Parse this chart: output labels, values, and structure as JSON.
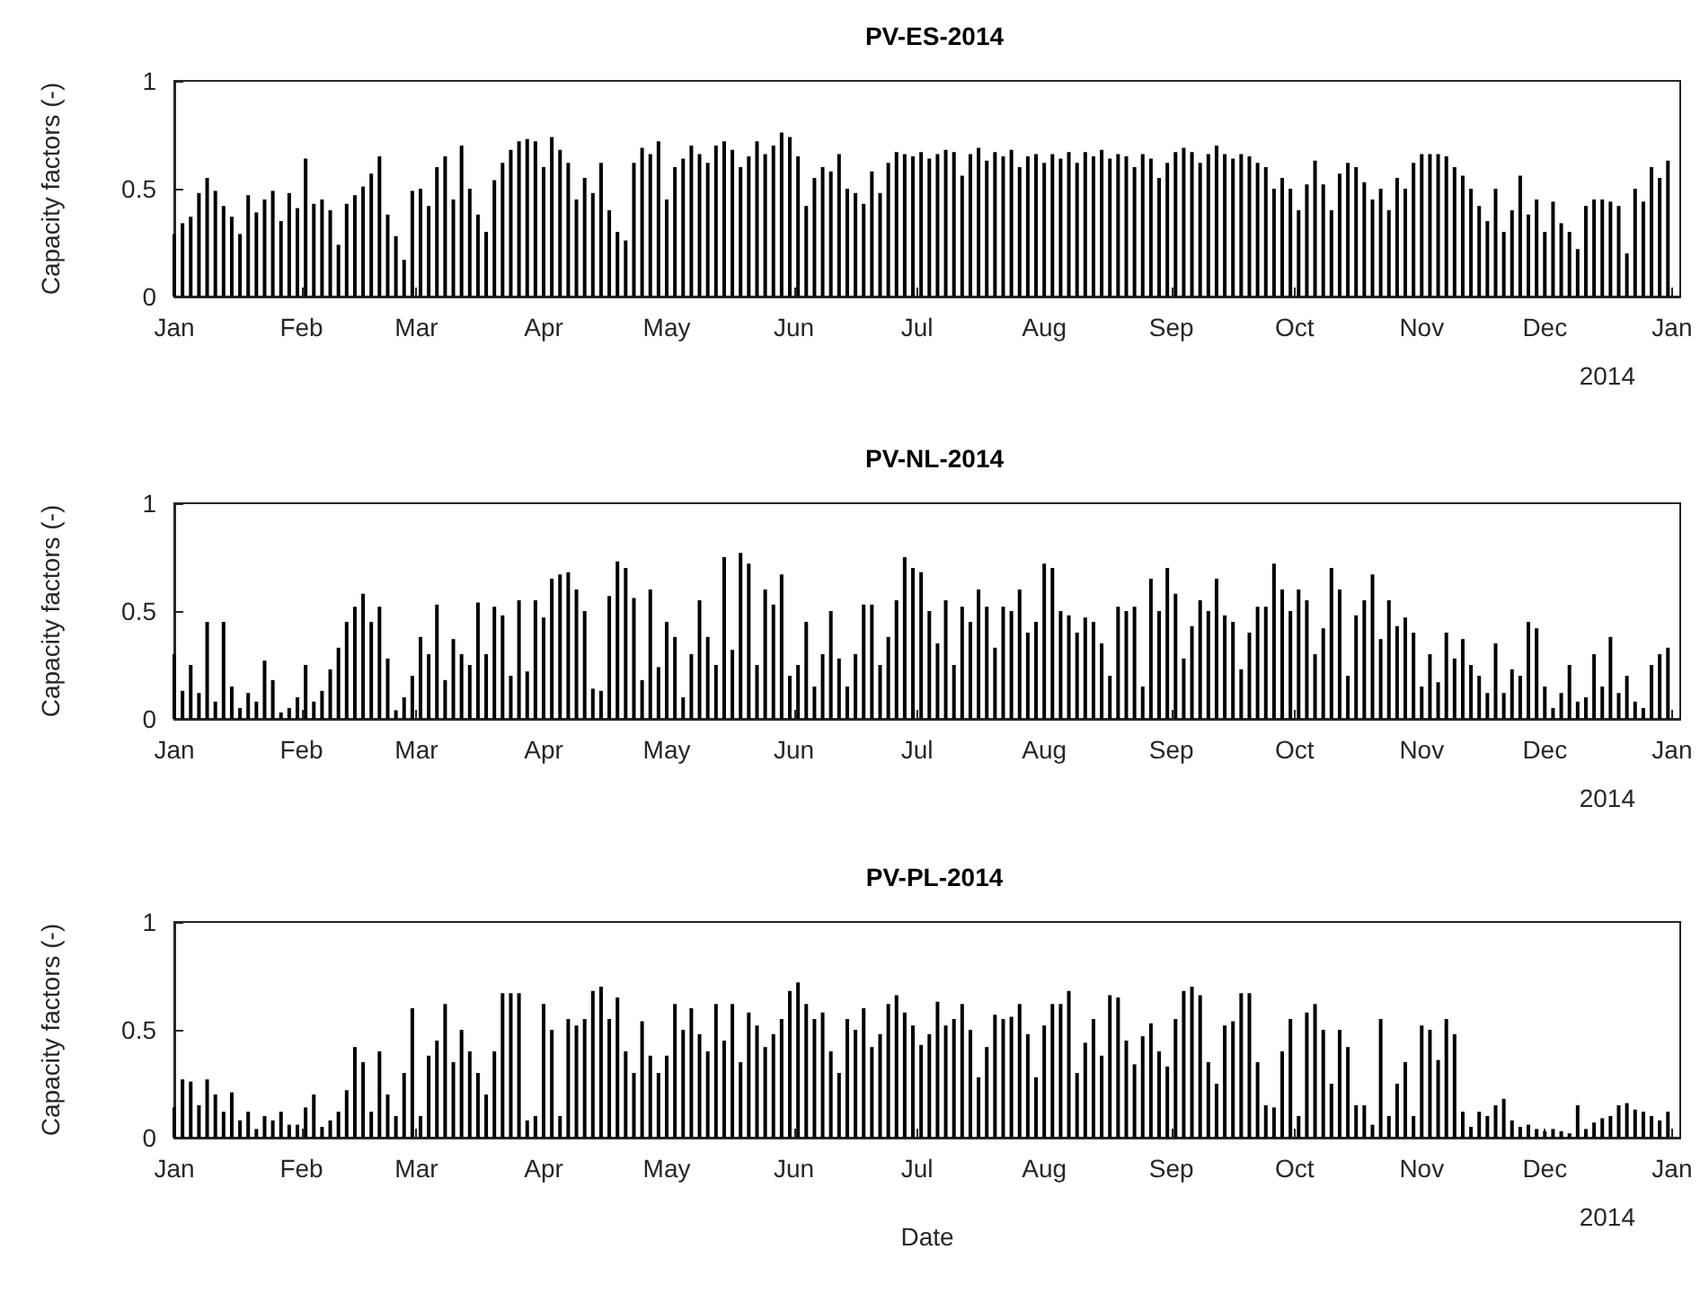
{
  "chart_data": [
    {
      "type": "bar",
      "title": "PV-ES-2014",
      "ylabel": "Capacity factors (-)",
      "annotations": [
        "2014"
      ],
      "color": "#000000",
      "xlim": [
        "2014-01-01",
        "2015-01-03"
      ],
      "ylim": [
        0,
        1
      ],
      "yticks": [
        0,
        0.5,
        1
      ],
      "xticks": [
        {
          "value": "2014-01-01",
          "label": "Jan"
        },
        {
          "value": "2014-02-01",
          "label": "Feb"
        },
        {
          "value": "2014-03-01",
          "label": "Mar"
        },
        {
          "value": "2014-04-01",
          "label": "Apr"
        },
        {
          "value": "2014-05-01",
          "label": "May"
        },
        {
          "value": "2014-06-01",
          "label": "Jun"
        },
        {
          "value": "2014-07-01",
          "label": "Jul"
        },
        {
          "value": "2014-08-01",
          "label": "Aug"
        },
        {
          "value": "2014-09-01",
          "label": "Sep"
        },
        {
          "value": "2014-10-01",
          "label": "Oct"
        },
        {
          "value": "2014-11-01",
          "label": "Nov"
        },
        {
          "value": "2014-12-01",
          "label": "Dec"
        },
        {
          "value": "2015-01-01",
          "label": "Jan"
        }
      ],
      "x": [
        "2014-01-01",
        "2014-01-03",
        "2014-01-05",
        "2014-01-07",
        "2014-01-09",
        "2014-01-11",
        "2014-01-13",
        "2014-01-15",
        "2014-01-17",
        "2014-01-19",
        "2014-01-21",
        "2014-01-23",
        "2014-01-25",
        "2014-01-27",
        "2014-01-29",
        "2014-01-31",
        "2014-02-02",
        "2014-02-04",
        "2014-02-06",
        "2014-02-08",
        "2014-02-10",
        "2014-02-12",
        "2014-02-14",
        "2014-02-16",
        "2014-02-18",
        "2014-02-20",
        "2014-02-22",
        "2014-02-24",
        "2014-02-26",
        "2014-02-28",
        "2014-03-02",
        "2014-03-04",
        "2014-03-06",
        "2014-03-08",
        "2014-03-10",
        "2014-03-12",
        "2014-03-14",
        "2014-03-16",
        "2014-03-18",
        "2014-03-20",
        "2014-03-22",
        "2014-03-24",
        "2014-03-26",
        "2014-03-28",
        "2014-03-30",
        "2014-04-01",
        "2014-04-03",
        "2014-04-05",
        "2014-04-07",
        "2014-04-09",
        "2014-04-11",
        "2014-04-13",
        "2014-04-15",
        "2014-04-17",
        "2014-04-19",
        "2014-04-21",
        "2014-04-23",
        "2014-04-25",
        "2014-04-27",
        "2014-04-29",
        "2014-05-01",
        "2014-05-03",
        "2014-05-05",
        "2014-05-07",
        "2014-05-09",
        "2014-05-11",
        "2014-05-13",
        "2014-05-15",
        "2014-05-17",
        "2014-05-19",
        "2014-05-21",
        "2014-05-23",
        "2014-05-25",
        "2014-05-27",
        "2014-05-29",
        "2014-05-31",
        "2014-06-02",
        "2014-06-04",
        "2014-06-06",
        "2014-06-08",
        "2014-06-10",
        "2014-06-12",
        "2014-06-14",
        "2014-06-16",
        "2014-06-18",
        "2014-06-20",
        "2014-06-22",
        "2014-06-24",
        "2014-06-26",
        "2014-06-28",
        "2014-06-30",
        "2014-07-02",
        "2014-07-04",
        "2014-07-06",
        "2014-07-08",
        "2014-07-10",
        "2014-07-12",
        "2014-07-14",
        "2014-07-16",
        "2014-07-18",
        "2014-07-20",
        "2014-07-22",
        "2014-07-24",
        "2014-07-26",
        "2014-07-28",
        "2014-07-30",
        "2014-08-01",
        "2014-08-03",
        "2014-08-05",
        "2014-08-07",
        "2014-08-09",
        "2014-08-11",
        "2014-08-13",
        "2014-08-15",
        "2014-08-17",
        "2014-08-19",
        "2014-08-21",
        "2014-08-23",
        "2014-08-25",
        "2014-08-27",
        "2014-08-29",
        "2014-08-31",
        "2014-09-02",
        "2014-09-04",
        "2014-09-06",
        "2014-09-08",
        "2014-09-10",
        "2014-09-12",
        "2014-09-14",
        "2014-09-16",
        "2014-09-18",
        "2014-09-20",
        "2014-09-22",
        "2014-09-24",
        "2014-09-26",
        "2014-09-28",
        "2014-09-30",
        "2014-10-02",
        "2014-10-04",
        "2014-10-06",
        "2014-10-08",
        "2014-10-10",
        "2014-10-12",
        "2014-10-14",
        "2014-10-16",
        "2014-10-18",
        "2014-10-20",
        "2014-10-22",
        "2014-10-24",
        "2014-10-26",
        "2014-10-28",
        "2014-10-30",
        "2014-11-01",
        "2014-11-03",
        "2014-11-05",
        "2014-11-07",
        "2014-11-09",
        "2014-11-11",
        "2014-11-13",
        "2014-11-15",
        "2014-11-17",
        "2014-11-19",
        "2014-11-21",
        "2014-11-23",
        "2014-11-25",
        "2014-11-27",
        "2014-11-29",
        "2014-12-01",
        "2014-12-03",
        "2014-12-05",
        "2014-12-07",
        "2014-12-09",
        "2014-12-11",
        "2014-12-13",
        "2014-12-15",
        "2014-12-17",
        "2014-12-19",
        "2014-12-21",
        "2014-12-23",
        "2014-12-25",
        "2014-12-27",
        "2014-12-29",
        "2014-12-31"
      ],
      "values": [
        0.29,
        0.34,
        0.37,
        0.48,
        0.55,
        0.49,
        0.42,
        0.37,
        0.29,
        0.47,
        0.39,
        0.45,
        0.49,
        0.35,
        0.48,
        0.41,
        0.64,
        0.43,
        0.45,
        0.4,
        0.24,
        0.43,
        0.47,
        0.51,
        0.57,
        0.65,
        0.38,
        0.28,
        0.17,
        0.49,
        0.5,
        0.42,
        0.6,
        0.65,
        0.45,
        0.7,
        0.5,
        0.38,
        0.3,
        0.54,
        0.62,
        0.68,
        0.72,
        0.73,
        0.72,
        0.6,
        0.74,
        0.68,
        0.62,
        0.45,
        0.55,
        0.48,
        0.62,
        0.4,
        0.3,
        0.26,
        0.62,
        0.69,
        0.66,
        0.72,
        0.45,
        0.6,
        0.64,
        0.7,
        0.66,
        0.62,
        0.7,
        0.72,
        0.68,
        0.6,
        0.65,
        0.72,
        0.66,
        0.7,
        0.76,
        0.74,
        0.65,
        0.42,
        0.55,
        0.6,
        0.58,
        0.66,
        0.5,
        0.48,
        0.43,
        0.58,
        0.48,
        0.62,
        0.67,
        0.66,
        0.65,
        0.67,
        0.64,
        0.66,
        0.68,
        0.67,
        0.56,
        0.66,
        0.69,
        0.63,
        0.67,
        0.65,
        0.68,
        0.6,
        0.65,
        0.66,
        0.62,
        0.66,
        0.64,
        0.67,
        0.62,
        0.67,
        0.65,
        0.68,
        0.64,
        0.66,
        0.65,
        0.6,
        0.66,
        0.64,
        0.55,
        0.62,
        0.67,
        0.69,
        0.67,
        0.62,
        0.66,
        0.7,
        0.66,
        0.64,
        0.66,
        0.65,
        0.62,
        0.6,
        0.5,
        0.55,
        0.5,
        0.4,
        0.52,
        0.63,
        0.52,
        0.4,
        0.57,
        0.62,
        0.6,
        0.53,
        0.45,
        0.5,
        0.4,
        0.55,
        0.5,
        0.62,
        0.66,
        0.66,
        0.66,
        0.65,
        0.6,
        0.56,
        0.5,
        0.42,
        0.35,
        0.5,
        0.3,
        0.4,
        0.56,
        0.38,
        0.45,
        0.3,
        0.44,
        0.34,
        0.3,
        0.22,
        0.42,
        0.45,
        0.45,
        0.44,
        0.42,
        0.2,
        0.5,
        0.44,
        0.6,
        0.55,
        0.63
      ]
    },
    {
      "type": "bar",
      "title": "PV-NL-2014",
      "ylabel": "Capacity factors (-)",
      "annotations": [
        "2014"
      ],
      "color": "#000000",
      "xlim": [
        "2014-01-01",
        "2015-01-03"
      ],
      "ylim": [
        0,
        1
      ],
      "yticks": [
        0,
        0.5,
        1
      ],
      "xticks": [
        {
          "value": "2014-01-01",
          "label": "Jan"
        },
        {
          "value": "2014-02-01",
          "label": "Feb"
        },
        {
          "value": "2014-03-01",
          "label": "Mar"
        },
        {
          "value": "2014-04-01",
          "label": "Apr"
        },
        {
          "value": "2014-05-01",
          "label": "May"
        },
        {
          "value": "2014-06-01",
          "label": "Jun"
        },
        {
          "value": "2014-07-01",
          "label": "Jul"
        },
        {
          "value": "2014-08-01",
          "label": "Aug"
        },
        {
          "value": "2014-09-01",
          "label": "Sep"
        },
        {
          "value": "2014-10-01",
          "label": "Oct"
        },
        {
          "value": "2014-11-01",
          "label": "Nov"
        },
        {
          "value": "2014-12-01",
          "label": "Dec"
        },
        {
          "value": "2015-01-01",
          "label": "Jan"
        }
      ],
      "x": [
        "2014-01-01",
        "2014-01-03",
        "2014-01-05",
        "2014-01-07",
        "2014-01-09",
        "2014-01-11",
        "2014-01-13",
        "2014-01-15",
        "2014-01-17",
        "2014-01-19",
        "2014-01-21",
        "2014-01-23",
        "2014-01-25",
        "2014-01-27",
        "2014-01-29",
        "2014-01-31",
        "2014-02-02",
        "2014-02-04",
        "2014-02-06",
        "2014-02-08",
        "2014-02-10",
        "2014-02-12",
        "2014-02-14",
        "2014-02-16",
        "2014-02-18",
        "2014-02-20",
        "2014-02-22",
        "2014-02-24",
        "2014-02-26",
        "2014-02-28",
        "2014-03-02",
        "2014-03-04",
        "2014-03-06",
        "2014-03-08",
        "2014-03-10",
        "2014-03-12",
        "2014-03-14",
        "2014-03-16",
        "2014-03-18",
        "2014-03-20",
        "2014-03-22",
        "2014-03-24",
        "2014-03-26",
        "2014-03-28",
        "2014-03-30",
        "2014-04-01",
        "2014-04-03",
        "2014-04-05",
        "2014-04-07",
        "2014-04-09",
        "2014-04-11",
        "2014-04-13",
        "2014-04-15",
        "2014-04-17",
        "2014-04-19",
        "2014-04-21",
        "2014-04-23",
        "2014-04-25",
        "2014-04-27",
        "2014-04-29",
        "2014-05-01",
        "2014-05-03",
        "2014-05-05",
        "2014-05-07",
        "2014-05-09",
        "2014-05-11",
        "2014-05-13",
        "2014-05-15",
        "2014-05-17",
        "2014-05-19",
        "2014-05-21",
        "2014-05-23",
        "2014-05-25",
        "2014-05-27",
        "2014-05-29",
        "2014-05-31",
        "2014-06-02",
        "2014-06-04",
        "2014-06-06",
        "2014-06-08",
        "2014-06-10",
        "2014-06-12",
        "2014-06-14",
        "2014-06-16",
        "2014-06-18",
        "2014-06-20",
        "2014-06-22",
        "2014-06-24",
        "2014-06-26",
        "2014-06-28",
        "2014-06-30",
        "2014-07-02",
        "2014-07-04",
        "2014-07-06",
        "2014-07-08",
        "2014-07-10",
        "2014-07-12",
        "2014-07-14",
        "2014-07-16",
        "2014-07-18",
        "2014-07-20",
        "2014-07-22",
        "2014-07-24",
        "2014-07-26",
        "2014-07-28",
        "2014-07-30",
        "2014-08-01",
        "2014-08-03",
        "2014-08-05",
        "2014-08-07",
        "2014-08-09",
        "2014-08-11",
        "2014-08-13",
        "2014-08-15",
        "2014-08-17",
        "2014-08-19",
        "2014-08-21",
        "2014-08-23",
        "2014-08-25",
        "2014-08-27",
        "2014-08-29",
        "2014-08-31",
        "2014-09-02",
        "2014-09-04",
        "2014-09-06",
        "2014-09-08",
        "2014-09-10",
        "2014-09-12",
        "2014-09-14",
        "2014-09-16",
        "2014-09-18",
        "2014-09-20",
        "2014-09-22",
        "2014-09-24",
        "2014-09-26",
        "2014-09-28",
        "2014-09-30",
        "2014-10-02",
        "2014-10-04",
        "2014-10-06",
        "2014-10-08",
        "2014-10-10",
        "2014-10-12",
        "2014-10-14",
        "2014-10-16",
        "2014-10-18",
        "2014-10-20",
        "2014-10-22",
        "2014-10-24",
        "2014-10-26",
        "2014-10-28",
        "2014-10-30",
        "2014-11-01",
        "2014-11-03",
        "2014-11-05",
        "2014-11-07",
        "2014-11-09",
        "2014-11-11",
        "2014-11-13",
        "2014-11-15",
        "2014-11-17",
        "2014-11-19",
        "2014-11-21",
        "2014-11-23",
        "2014-11-25",
        "2014-11-27",
        "2014-11-29",
        "2014-12-01",
        "2014-12-03",
        "2014-12-05",
        "2014-12-07",
        "2014-12-09",
        "2014-12-11",
        "2014-12-13",
        "2014-12-15",
        "2014-12-17",
        "2014-12-19",
        "2014-12-21",
        "2014-12-23",
        "2014-12-25",
        "2014-12-27",
        "2014-12-29",
        "2014-12-31"
      ],
      "values": [
        0.3,
        0.13,
        0.25,
        0.12,
        0.45,
        0.08,
        0.45,
        0.15,
        0.05,
        0.12,
        0.08,
        0.27,
        0.18,
        0.03,
        0.05,
        0.1,
        0.25,
        0.08,
        0.13,
        0.23,
        0.33,
        0.45,
        0.52,
        0.58,
        0.45,
        0.52,
        0.28,
        0.04,
        0.1,
        0.2,
        0.38,
        0.3,
        0.53,
        0.18,
        0.37,
        0.3,
        0.25,
        0.54,
        0.3,
        0.52,
        0.48,
        0.2,
        0.55,
        0.22,
        0.55,
        0.47,
        0.65,
        0.67,
        0.68,
        0.6,
        0.5,
        0.14,
        0.13,
        0.57,
        0.73,
        0.7,
        0.56,
        0.18,
        0.6,
        0.24,
        0.45,
        0.38,
        0.1,
        0.3,
        0.55,
        0.38,
        0.25,
        0.75,
        0.32,
        0.77,
        0.72,
        0.25,
        0.6,
        0.53,
        0.67,
        0.2,
        0.25,
        0.45,
        0.15,
        0.3,
        0.5,
        0.28,
        0.15,
        0.3,
        0.53,
        0.53,
        0.25,
        0.38,
        0.55,
        0.75,
        0.7,
        0.68,
        0.5,
        0.35,
        0.55,
        0.25,
        0.52,
        0.45,
        0.6,
        0.52,
        0.33,
        0.52,
        0.5,
        0.6,
        0.4,
        0.45,
        0.72,
        0.7,
        0.5,
        0.48,
        0.4,
        0.47,
        0.45,
        0.35,
        0.2,
        0.52,
        0.5,
        0.52,
        0.15,
        0.65,
        0.5,
        0.7,
        0.58,
        0.28,
        0.43,
        0.55,
        0.5,
        0.65,
        0.48,
        0.45,
        0.23,
        0.4,
        0.52,
        0.52,
        0.72,
        0.6,
        0.5,
        0.6,
        0.55,
        0.3,
        0.42,
        0.7,
        0.6,
        0.2,
        0.48,
        0.55,
        0.67,
        0.37,
        0.55,
        0.43,
        0.47,
        0.4,
        0.15,
        0.3,
        0.17,
        0.4,
        0.28,
        0.37,
        0.25,
        0.2,
        0.12,
        0.35,
        0.12,
        0.23,
        0.2,
        0.45,
        0.42,
        0.15,
        0.05,
        0.12,
        0.25,
        0.08,
        0.1,
        0.3,
        0.15,
        0.38,
        0.12,
        0.2,
        0.08,
        0.05,
        0.25,
        0.3,
        0.33
      ]
    },
    {
      "type": "bar",
      "title": "PV-PL-2014",
      "xlabel": "Date",
      "ylabel": "Capacity factors (-)",
      "annotations": [
        "2014"
      ],
      "color": "#000000",
      "xlim": [
        "2014-01-01",
        "2015-01-03"
      ],
      "ylim": [
        0,
        1
      ],
      "yticks": [
        0,
        0.5,
        1
      ],
      "xticks": [
        {
          "value": "2014-01-01",
          "label": "Jan"
        },
        {
          "value": "2014-02-01",
          "label": "Feb"
        },
        {
          "value": "2014-03-01",
          "label": "Mar"
        },
        {
          "value": "2014-04-01",
          "label": "Apr"
        },
        {
          "value": "2014-05-01",
          "label": "May"
        },
        {
          "value": "2014-06-01",
          "label": "Jun"
        },
        {
          "value": "2014-07-01",
          "label": "Jul"
        },
        {
          "value": "2014-08-01",
          "label": "Aug"
        },
        {
          "value": "2014-09-01",
          "label": "Sep"
        },
        {
          "value": "2014-10-01",
          "label": "Oct"
        },
        {
          "value": "2014-11-01",
          "label": "Nov"
        },
        {
          "value": "2014-12-01",
          "label": "Dec"
        },
        {
          "value": "2015-01-01",
          "label": "Jan"
        }
      ],
      "x": [
        "2014-01-01",
        "2014-01-03",
        "2014-01-05",
        "2014-01-07",
        "2014-01-09",
        "2014-01-11",
        "2014-01-13",
        "2014-01-15",
        "2014-01-17",
        "2014-01-19",
        "2014-01-21",
        "2014-01-23",
        "2014-01-25",
        "2014-01-27",
        "2014-01-29",
        "2014-01-31",
        "2014-02-02",
        "2014-02-04",
        "2014-02-06",
        "2014-02-08",
        "2014-02-10",
        "2014-02-12",
        "2014-02-14",
        "2014-02-16",
        "2014-02-18",
        "2014-02-20",
        "2014-02-22",
        "2014-02-24",
        "2014-02-26",
        "2014-02-28",
        "2014-03-02",
        "2014-03-04",
        "2014-03-06",
        "2014-03-08",
        "2014-03-10",
        "2014-03-12",
        "2014-03-14",
        "2014-03-16",
        "2014-03-18",
        "2014-03-20",
        "2014-03-22",
        "2014-03-24",
        "2014-03-26",
        "2014-03-28",
        "2014-03-30",
        "2014-04-01",
        "2014-04-03",
        "2014-04-05",
        "2014-04-07",
        "2014-04-09",
        "2014-04-11",
        "2014-04-13",
        "2014-04-15",
        "2014-04-17",
        "2014-04-19",
        "2014-04-21",
        "2014-04-23",
        "2014-04-25",
        "2014-04-27",
        "2014-04-29",
        "2014-05-01",
        "2014-05-03",
        "2014-05-05",
        "2014-05-07",
        "2014-05-09",
        "2014-05-11",
        "2014-05-13",
        "2014-05-15",
        "2014-05-17",
        "2014-05-19",
        "2014-05-21",
        "2014-05-23",
        "2014-05-25",
        "2014-05-27",
        "2014-05-29",
        "2014-05-31",
        "2014-06-02",
        "2014-06-04",
        "2014-06-06",
        "2014-06-08",
        "2014-06-10",
        "2014-06-12",
        "2014-06-14",
        "2014-06-16",
        "2014-06-18",
        "2014-06-20",
        "2014-06-22",
        "2014-06-24",
        "2014-06-26",
        "2014-06-28",
        "2014-06-30",
        "2014-07-02",
        "2014-07-04",
        "2014-07-06",
        "2014-07-08",
        "2014-07-10",
        "2014-07-12",
        "2014-07-14",
        "2014-07-16",
        "2014-07-18",
        "2014-07-20",
        "2014-07-22",
        "2014-07-24",
        "2014-07-26",
        "2014-07-28",
        "2014-07-30",
        "2014-08-01",
        "2014-08-03",
        "2014-08-05",
        "2014-08-07",
        "2014-08-09",
        "2014-08-11",
        "2014-08-13",
        "2014-08-15",
        "2014-08-17",
        "2014-08-19",
        "2014-08-21",
        "2014-08-23",
        "2014-08-25",
        "2014-08-27",
        "2014-08-29",
        "2014-08-31",
        "2014-09-02",
        "2014-09-04",
        "2014-09-06",
        "2014-09-08",
        "2014-09-10",
        "2014-09-12",
        "2014-09-14",
        "2014-09-16",
        "2014-09-18",
        "2014-09-20",
        "2014-09-22",
        "2014-09-24",
        "2014-09-26",
        "2014-09-28",
        "2014-09-30",
        "2014-10-02",
        "2014-10-04",
        "2014-10-06",
        "2014-10-08",
        "2014-10-10",
        "2014-10-12",
        "2014-10-14",
        "2014-10-16",
        "2014-10-18",
        "2014-10-20",
        "2014-10-22",
        "2014-10-24",
        "2014-10-26",
        "2014-10-28",
        "2014-10-30",
        "2014-11-01",
        "2014-11-03",
        "2014-11-05",
        "2014-11-07",
        "2014-11-09",
        "2014-11-11",
        "2014-11-13",
        "2014-11-15",
        "2014-11-17",
        "2014-11-19",
        "2014-11-21",
        "2014-11-23",
        "2014-11-25",
        "2014-11-27",
        "2014-11-29",
        "2014-12-01",
        "2014-12-03",
        "2014-12-05",
        "2014-12-07",
        "2014-12-09",
        "2014-12-11",
        "2014-12-13",
        "2014-12-15",
        "2014-12-17",
        "2014-12-19",
        "2014-12-21",
        "2014-12-23",
        "2014-12-25",
        "2014-12-27",
        "2014-12-29",
        "2014-12-31"
      ],
      "values": [
        0.14,
        0.27,
        0.26,
        0.15,
        0.27,
        0.2,
        0.12,
        0.21,
        0.08,
        0.12,
        0.04,
        0.1,
        0.08,
        0.12,
        0.06,
        0.06,
        0.14,
        0.2,
        0.05,
        0.08,
        0.12,
        0.22,
        0.42,
        0.35,
        0.12,
        0.4,
        0.2,
        0.1,
        0.3,
        0.6,
        0.1,
        0.38,
        0.45,
        0.62,
        0.35,
        0.5,
        0.4,
        0.3,
        0.2,
        0.4,
        0.67,
        0.67,
        0.67,
        0.08,
        0.1,
        0.62,
        0.5,
        0.1,
        0.55,
        0.52,
        0.55,
        0.68,
        0.7,
        0.55,
        0.65,
        0.4,
        0.3,
        0.54,
        0.38,
        0.3,
        0.38,
        0.62,
        0.5,
        0.6,
        0.48,
        0.4,
        0.62,
        0.45,
        0.62,
        0.35,
        0.58,
        0.52,
        0.42,
        0.48,
        0.55,
        0.68,
        0.72,
        0.62,
        0.55,
        0.58,
        0.4,
        0.3,
        0.55,
        0.5,
        0.6,
        0.42,
        0.48,
        0.62,
        0.66,
        0.58,
        0.52,
        0.43,
        0.48,
        0.63,
        0.52,
        0.55,
        0.62,
        0.5,
        0.28,
        0.42,
        0.57,
        0.55,
        0.56,
        0.62,
        0.48,
        0.28,
        0.52,
        0.62,
        0.62,
        0.68,
        0.3,
        0.44,
        0.55,
        0.38,
        0.66,
        0.65,
        0.45,
        0.34,
        0.47,
        0.53,
        0.4,
        0.33,
        0.55,
        0.68,
        0.7,
        0.66,
        0.35,
        0.25,
        0.52,
        0.54,
        0.67,
        0.67,
        0.35,
        0.15,
        0.14,
        0.4,
        0.55,
        0.1,
        0.58,
        0.62,
        0.5,
        0.25,
        0.5,
        0.42,
        0.15,
        0.15,
        0.06,
        0.55,
        0.1,
        0.25,
        0.35,
        0.1,
        0.52,
        0.5,
        0.36,
        0.55,
        0.48,
        0.12,
        0.05,
        0.12,
        0.1,
        0.15,
        0.18,
        0.08,
        0.05,
        0.06,
        0.04,
        0.03,
        0.04,
        0.03,
        0.02,
        0.15,
        0.04,
        0.07,
        0.09,
        0.1,
        0.15,
        0.16,
        0.13,
        0.12,
        0.1,
        0.08,
        0.12
      ]
    }
  ]
}
